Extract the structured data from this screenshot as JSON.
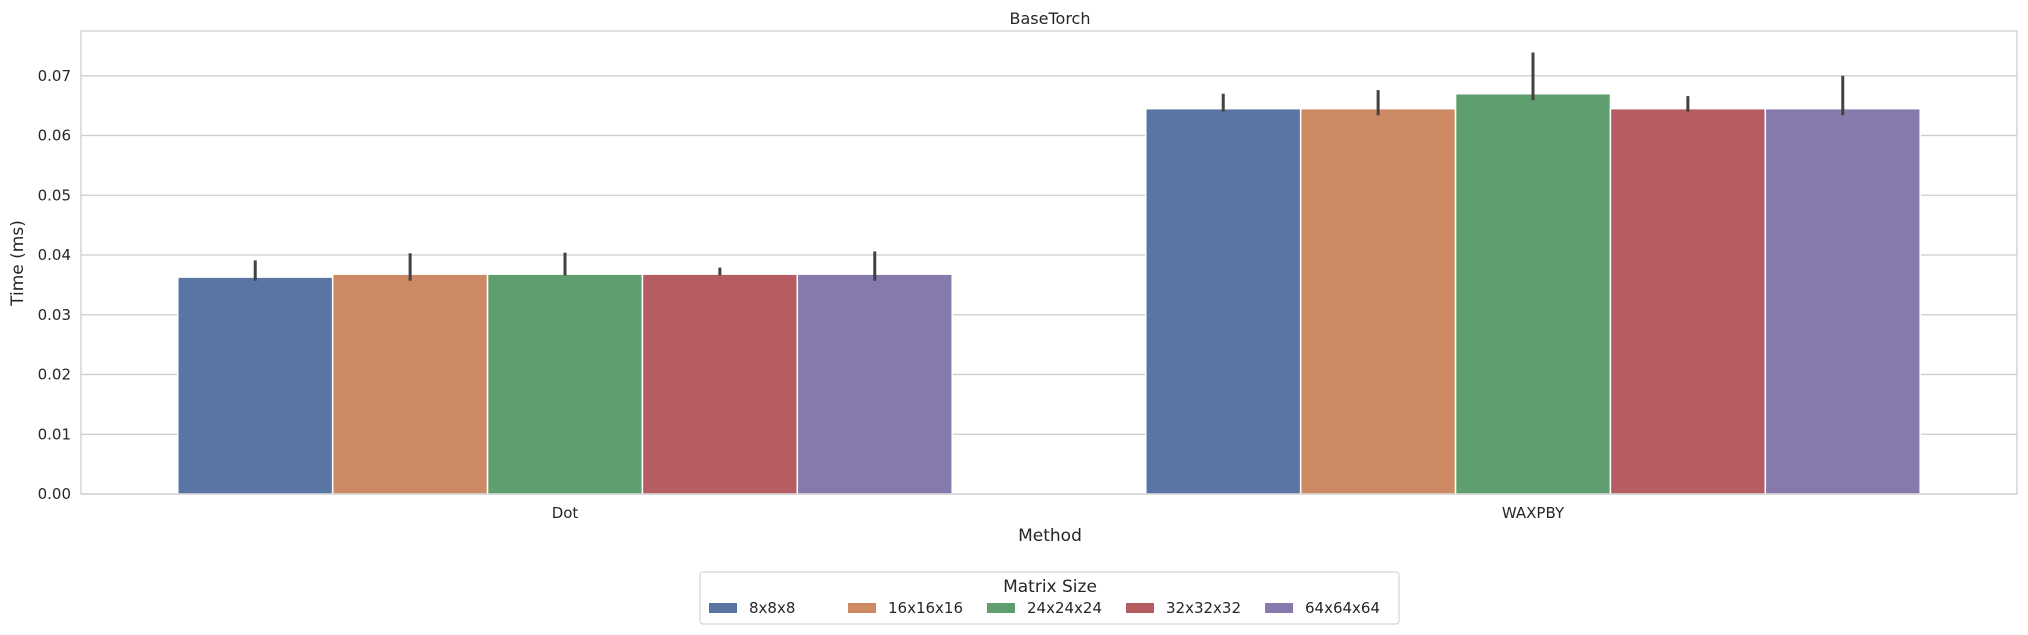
{
  "chart_data": {
    "type": "bar",
    "title": "BaseTorch",
    "xlabel": "Method",
    "ylabel": "Time (ms)",
    "categories": [
      "Dot",
      "WAXPBY"
    ],
    "ylim": [
      0,
      0.0775
    ],
    "yticks": [
      "0.00",
      "0.01",
      "0.02",
      "0.03",
      "0.04",
      "0.05",
      "0.06",
      "0.07"
    ],
    "grid": "horizontal",
    "legend": {
      "title": "Matrix Size",
      "placement": "bottom-center"
    },
    "series": [
      {
        "name": "8x8x8",
        "color": "#5975a4",
        "values": [
          0.0363,
          0.0645
        ],
        "err_low": [
          0.0357,
          0.064
        ],
        "err_high": [
          0.0391,
          0.067
        ]
      },
      {
        "name": "16x16x16",
        "color": "#cc8963",
        "values": [
          0.0368,
          0.0645
        ],
        "err_low": [
          0.0357,
          0.0634
        ],
        "err_high": [
          0.0403,
          0.0676
        ]
      },
      {
        "name": "24x24x24",
        "color": "#5f9e6e",
        "values": [
          0.0368,
          0.067
        ],
        "err_low": [
          0.0366,
          0.0659
        ],
        "err_high": [
          0.0404,
          0.0739
        ]
      },
      {
        "name": "32x32x32",
        "color": "#b55d60",
        "values": [
          0.0368,
          0.0645
        ],
        "err_low": [
          0.0366,
          0.064
        ],
        "err_high": [
          0.0379,
          0.0666
        ]
      },
      {
        "name": "64x64x64",
        "color": "#857aab",
        "values": [
          0.0368,
          0.0645
        ],
        "err_low": [
          0.0357,
          0.0634
        ],
        "err_high": [
          0.0406,
          0.07
        ]
      }
    ]
  }
}
